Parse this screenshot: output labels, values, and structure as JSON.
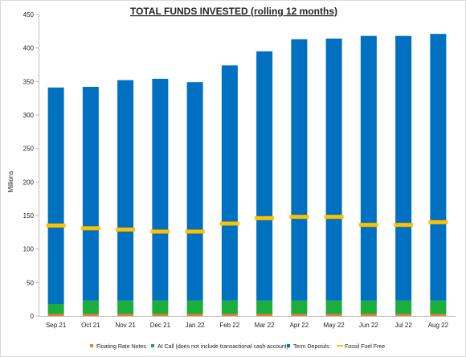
{
  "chart_data": {
    "type": "bar",
    "title": "TOTAL FUNDS INVESTED (rolling 12 months)",
    "ylabel": "Millions",
    "xlabel": "",
    "ylim": [
      0,
      450
    ],
    "yticks": [
      0,
      50,
      100,
      150,
      200,
      250,
      300,
      350,
      400,
      450
    ],
    "grid": false,
    "legend_position": "bottom",
    "categories": [
      "Sep 21",
      "Oct 21",
      "Nov 21",
      "Dec 21",
      "Jan 22",
      "Feb 22",
      "Mar 22",
      "Apr 22",
      "May 22",
      "Jun 22",
      "Jul 22",
      "Aug 22"
    ],
    "stacked_series": [
      {
        "name": "Floating Rate Notes",
        "color": "#ed7d31",
        "values": [
          3,
          3,
          3,
          3,
          3,
          3,
          3,
          3,
          3,
          3,
          3,
          3
        ]
      },
      {
        "name": "At Call (does not include transactional cash account)",
        "color": "#1aae3c",
        "values": [
          15,
          20,
          20,
          20,
          20,
          20,
          20,
          20,
          20,
          20,
          20,
          20
        ]
      },
      {
        "name": "Term Deposits",
        "color": "#0070c0",
        "values": [
          323,
          319,
          329,
          331,
          326,
          351,
          372,
          390,
          391,
          395,
          395,
          398
        ]
      }
    ],
    "marker_series": {
      "name": "Fossil Fuel Free",
      "color": "#ffc000",
      "values": [
        135,
        131,
        129,
        126,
        126,
        138,
        146,
        148,
        148,
        136,
        136,
        140
      ]
    }
  }
}
